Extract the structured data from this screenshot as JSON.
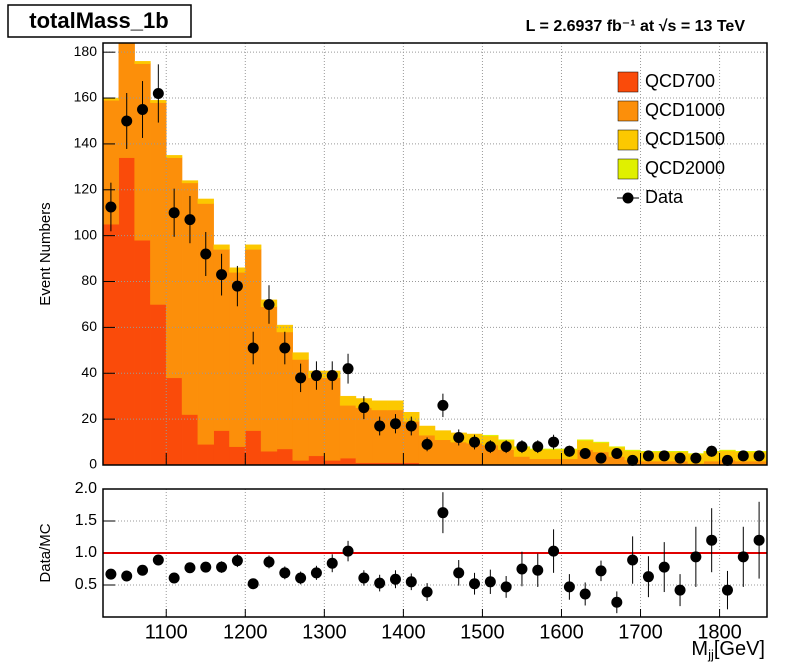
{
  "chart_data": [
    {
      "type": "histogram",
      "title": "totalMass_1b",
      "annotation": "L = 2.6937 fb⁻¹ at  √s = 13 TeV",
      "ylabel": "Event Numbers",
      "bins": [
        1020,
        1040,
        1060,
        1080,
        1100,
        1120,
        1140,
        1160,
        1180,
        1200,
        1220,
        1240,
        1260,
        1280,
        1300,
        1320,
        1340,
        1360,
        1380,
        1400,
        1420,
        1440,
        1460,
        1480,
        1500,
        1520,
        1540,
        1560,
        1580,
        1600,
        1620,
        1640,
        1660,
        1680,
        1700,
        1720,
        1740,
        1760,
        1780,
        1800,
        1820,
        1840,
        1860
      ],
      "xlim": [
        1020,
        1860
      ],
      "xticks": [
        1100,
        1200,
        1300,
        1400,
        1500,
        1600,
        1700,
        1800
      ],
      "ylim": [
        0,
        184
      ],
      "yticks": [
        0,
        20,
        40,
        60,
        80,
        100,
        120,
        140,
        160,
        180
      ],
      "grid": true,
      "legend": "top-right",
      "series": [
        {
          "name": "QCD700",
          "color": "#fa4b0a",
          "values": [
            105,
            134,
            98,
            70,
            38,
            22,
            9,
            15,
            8,
            15,
            6,
            7,
            2,
            4,
            2,
            3,
            1,
            1,
            1,
            1,
            0.5,
            0.5,
            0.5,
            0.5,
            0.3,
            0.3,
            0.2,
            0.2,
            0.2,
            0.2,
            0.1,
            0.1,
            0.1,
            0.1,
            0.1,
            0.1,
            0.1,
            0.1,
            0.1,
            0.1,
            0.1,
            0.1
          ]
        },
        {
          "name": "QCD1000",
          "color": "#fc8f0a",
          "values": [
            54,
            55,
            77,
            88,
            96,
            101,
            105,
            79,
            76,
            79,
            63,
            51,
            44,
            34,
            36,
            23,
            24,
            23,
            23,
            18,
            12.5,
            10.5,
            9.5,
            9,
            8.4,
            6.4,
            3.5,
            2.5,
            2.5,
            2.5,
            6.6,
            5.6,
            3.6,
            2.1,
            1.6,
            1.6,
            1.6,
            0.6,
            1.6,
            2.1,
            1.6,
            1.6
          ]
        },
        {
          "name": "QCD1500",
          "color": "#fcc800",
          "values": [
            1,
            1,
            1,
            1,
            1,
            1,
            2,
            2,
            2,
            2,
            3,
            3,
            3,
            3,
            3,
            4,
            4,
            4,
            4,
            4,
            4,
            4,
            4,
            4,
            4,
            4,
            4,
            4,
            4,
            4,
            4,
            4,
            4,
            4,
            4,
            4,
            4,
            4,
            4,
            4,
            4,
            4
          ]
        },
        {
          "name": "QCD2000",
          "color": "#e0f000",
          "values": [
            0,
            0,
            0,
            0,
            0,
            0,
            0,
            0,
            0,
            0,
            0,
            0,
            0,
            0,
            0,
            0,
            0,
            0,
            0,
            0,
            0,
            0,
            0,
            0,
            0.3,
            0.3,
            0.3,
            0.3,
            0.3,
            0.3,
            0.3,
            0.3,
            0.3,
            0.3,
            0.3,
            0.3,
            0.3,
            0.3,
            0.3,
            0.3,
            0.3,
            0.3
          ]
        },
        {
          "name": "Data",
          "color": "#000000",
          "marker": "circle",
          "values": [
            112.5,
            150,
            155,
            162,
            110,
            107,
            92,
            83,
            78,
            51,
            70,
            51,
            38,
            39,
            39,
            42,
            25,
            17,
            18,
            17,
            9,
            26,
            12,
            10,
            8,
            8,
            8,
            8,
            10,
            6,
            5,
            3,
            5,
            2,
            4,
            4,
            3,
            3,
            6,
            2,
            4,
            4
          ],
          "errors": [
            10.6,
            12.2,
            12.4,
            12.7,
            10.5,
            10.3,
            9.6,
            9.1,
            8.8,
            7.1,
            8.4,
            7.1,
            6.2,
            6.2,
            6.2,
            6.5,
            5,
            4.1,
            4.2,
            4.1,
            3,
            5.1,
            3.5,
            3.2,
            2.8,
            2.8,
            2.8,
            2.8,
            3.2,
            2.4,
            2.2,
            1.7,
            2.2,
            1.4,
            2,
            2,
            1.7,
            1.7,
            2.4,
            1.4,
            2,
            2
          ]
        }
      ]
    },
    {
      "type": "scatter",
      "ylabel": "Data/MC",
      "xlabel": {
        "main": "M",
        "sub": "jj",
        "unit": "[GeV]"
      },
      "x": [
        1030,
        1050,
        1070,
        1090,
        1110,
        1130,
        1150,
        1170,
        1190,
        1210,
        1230,
        1250,
        1270,
        1290,
        1310,
        1330,
        1350,
        1370,
        1390,
        1410,
        1430,
        1450,
        1470,
        1490,
        1510,
        1530,
        1550,
        1570,
        1590,
        1610,
        1630,
        1650,
        1670,
        1690,
        1710,
        1730,
        1750,
        1770,
        1790,
        1810,
        1830,
        1850
      ],
      "values": [
        0.67,
        0.64,
        0.73,
        0.89,
        0.61,
        0.77,
        0.78,
        0.78,
        0.88,
        0.52,
        0.86,
        0.69,
        0.61,
        0.69,
        0.84,
        1.03,
        0.61,
        0.53,
        0.59,
        0.55,
        0.39,
        1.63,
        0.69,
        0.52,
        0.55,
        0.47,
        0.75,
        0.73,
        1.03,
        0.47,
        0.36,
        0.72,
        0.23,
        0.89,
        0.63,
        0.78,
        0.42,
        0.94,
        1.2,
        0.42,
        0.94,
        1.2
      ],
      "errors": [
        0.07,
        0.06,
        0.06,
        0.08,
        0.06,
        0.08,
        0.08,
        0.09,
        0.1,
        0.07,
        0.1,
        0.1,
        0.1,
        0.11,
        0.14,
        0.16,
        0.12,
        0.13,
        0.14,
        0.13,
        0.14,
        0.32,
        0.2,
        0.17,
        0.19,
        0.17,
        0.27,
        0.26,
        0.34,
        0.2,
        0.18,
        0.16,
        0.17,
        0.37,
        0.32,
        0.39,
        0.25,
        0.47,
        0.5,
        0.3,
        0.47,
        0.6
      ],
      "color": "#000000",
      "xlim": [
        1020,
        1860
      ],
      "xticks": [
        1100,
        1200,
        1300,
        1400,
        1500,
        1600,
        1700,
        1800
      ],
      "ylim": [
        0,
        2
      ],
      "yticks": [
        {
          "value": 0.5,
          "label": "0.5"
        },
        {
          "value": 1,
          "label": "1.0"
        },
        {
          "value": 1.5,
          "label": "1.5"
        },
        {
          "value": 2,
          "label": "2.0"
        }
      ],
      "grid": true,
      "ref_line": {
        "value": 1,
        "color": "#e00000"
      }
    }
  ]
}
